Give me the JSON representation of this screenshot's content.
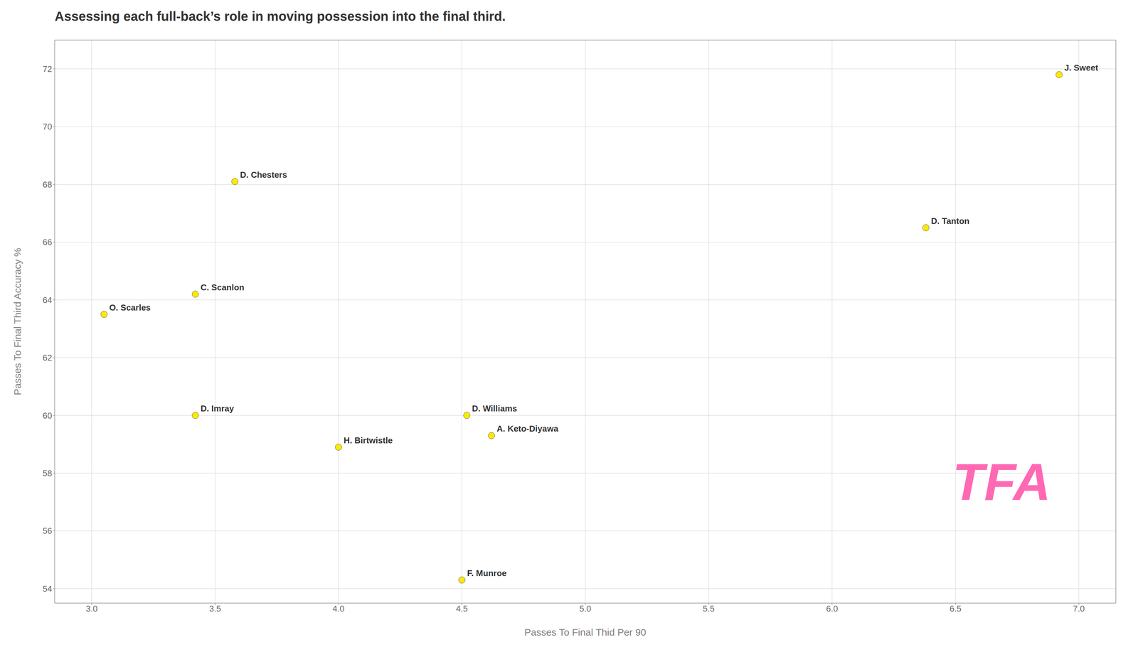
{
  "chart_data": {
    "type": "scatter",
    "title": "Assessing each full-back’s role in moving possession into the final third.",
    "x_label": "Passes To Final Thid Per 90",
    "y_label": "Passes To Final Third Accuracy %",
    "x": [
      6.92,
      6.38,
      3.58,
      3.05,
      3.42,
      4.52,
      4.62,
      3.42,
      4.0,
      4.5
    ],
    "values": [
      71.8,
      66.5,
      68.1,
      63.5,
      64.2,
      60.0,
      59.3,
      60.0,
      58.9,
      54.3
    ],
    "labels": [
      "J. Sweet",
      "D. Tanton",
      "D. Chesters",
      "O. Scarles",
      "C. Scanlon",
      "D. Williams",
      "A. Keto-Diyawa",
      "D. Imray",
      "H. Birtwistle",
      "F. Munroe"
    ],
    "color": "#FFE800",
    "xlim": [
      2.85,
      7.15
    ],
    "ylim": [
      53.5,
      73.0
    ],
    "xticks": [
      {
        "value": 3,
        "label": "3.0"
      },
      3.5,
      {
        "value": 4,
        "label": "4.0"
      },
      4.5,
      {
        "value": 5,
        "label": "5.0"
      },
      5.5,
      {
        "value": 6,
        "label": "6.0"
      },
      6.5,
      {
        "value": 7,
        "label": "7.0"
      }
    ],
    "yticks": [
      54,
      56,
      58,
      60,
      62,
      64,
      66,
      68,
      70,
      72
    ],
    "grid": true,
    "annotations": [
      {
        "text": "TFA",
        "color": "#FF69B4"
      }
    ]
  }
}
